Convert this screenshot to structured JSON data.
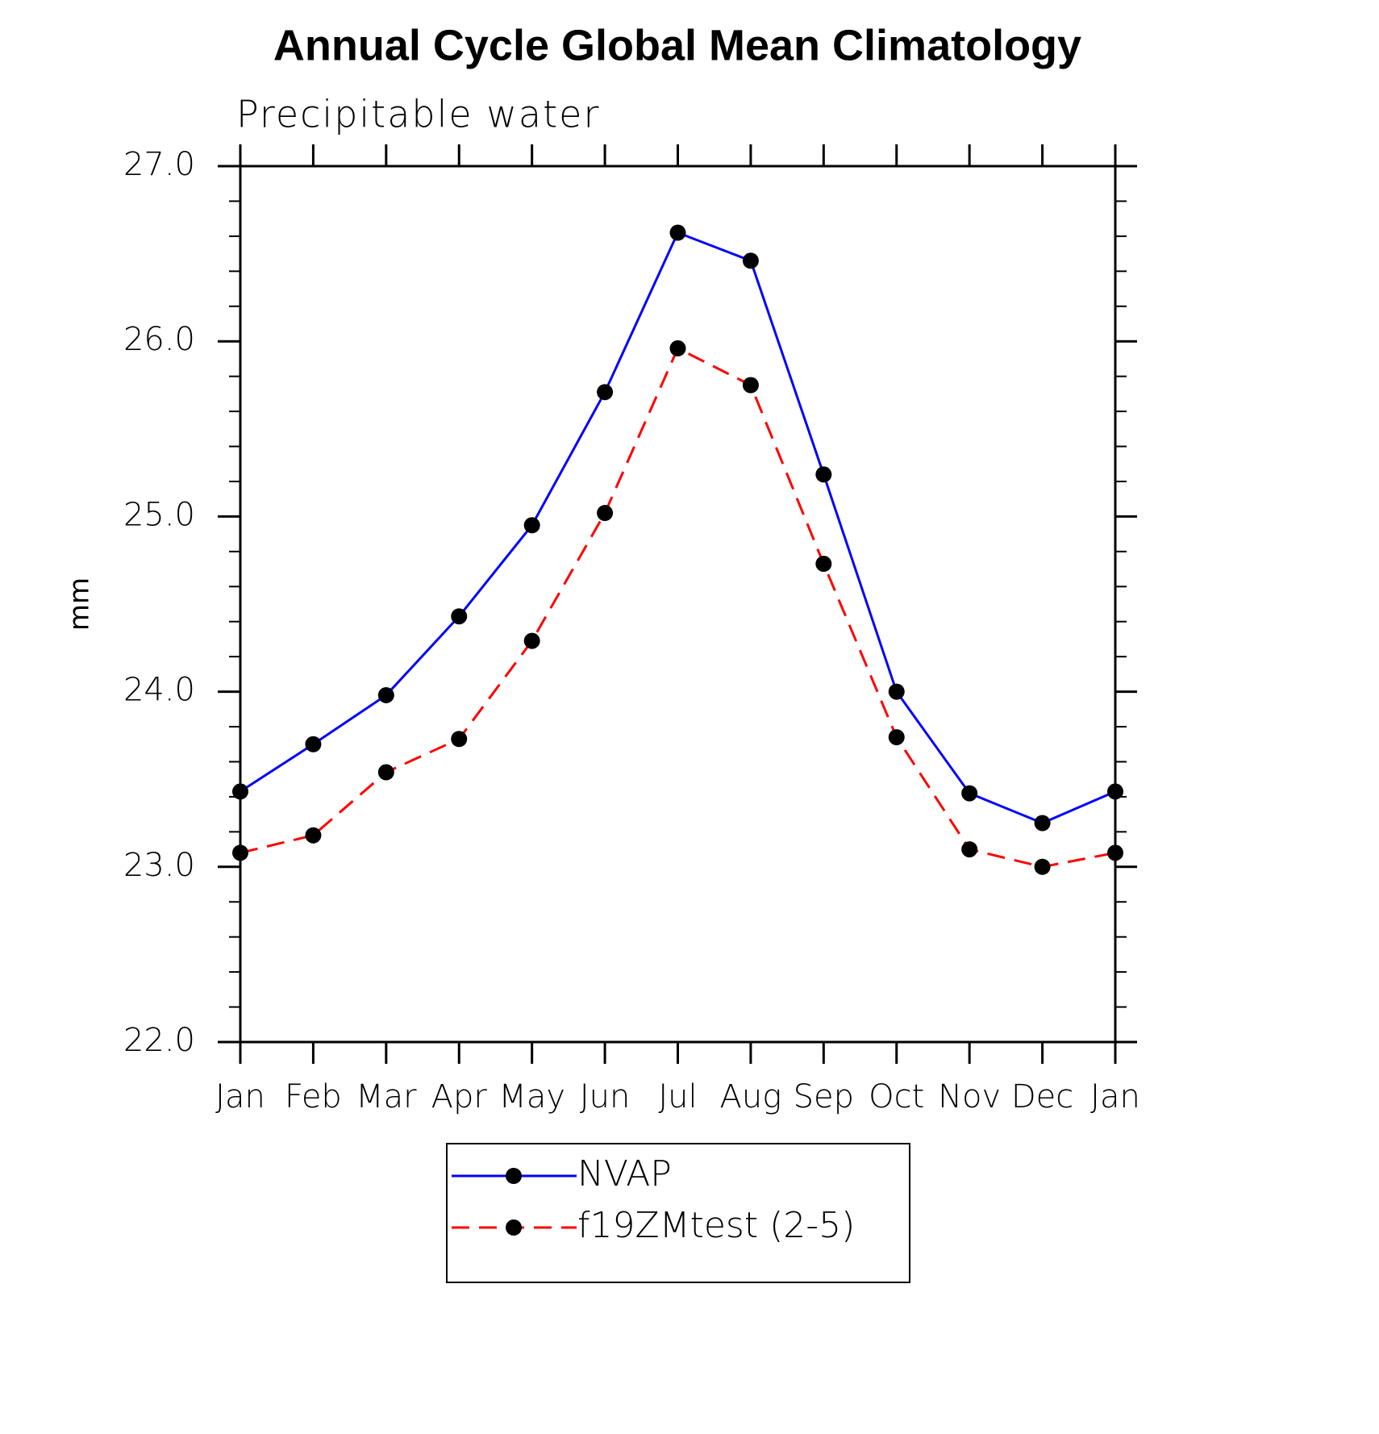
{
  "chart_data": {
    "type": "line",
    "title": "Annual Cycle Global Mean Climatology",
    "subtitle": "Precipitable water",
    "y_label": "mm",
    "categories": [
      "Jan",
      "Feb",
      "Mar",
      "Apr",
      "May",
      "Jun",
      "Jul",
      "Aug",
      "Sep",
      "Oct",
      "Nov",
      "Dec",
      "Jan"
    ],
    "series": [
      {
        "name": "NVAP",
        "color": "#0000ff",
        "dash": false,
        "values": [
          23.43,
          23.7,
          23.98,
          24.43,
          24.95,
          25.71,
          26.62,
          26.46,
          25.24,
          24.0,
          23.42,
          23.25,
          23.43
        ]
      },
      {
        "name": "f19ZMtest (2-5)",
        "color": "#ff0000",
        "dash": true,
        "values": [
          23.08,
          23.18,
          23.54,
          23.73,
          24.29,
          25.02,
          25.96,
          25.75,
          24.73,
          23.74,
          23.1,
          23.0,
          23.08
        ]
      }
    ],
    "ylim": [
      22.0,
      27.0
    ],
    "yticks": [
      {
        "value": 22,
        "label": "22.0"
      },
      {
        "value": 23,
        "label": "23.0"
      },
      {
        "value": 24,
        "label": "24.0"
      },
      {
        "value": 25,
        "label": "25.0"
      },
      {
        "value": 26,
        "label": "26.0"
      },
      {
        "value": 27,
        "label": "27.0"
      }
    ],
    "yminorticks": [
      22.2,
      22.4,
      22.6,
      22.8,
      23.2,
      23.4,
      23.6,
      23.8,
      24.2,
      24.4,
      24.6,
      24.8,
      25.2,
      25.4,
      25.6,
      25.8,
      26.2,
      26.4,
      26.6,
      26.8
    ],
    "grid": false
  }
}
